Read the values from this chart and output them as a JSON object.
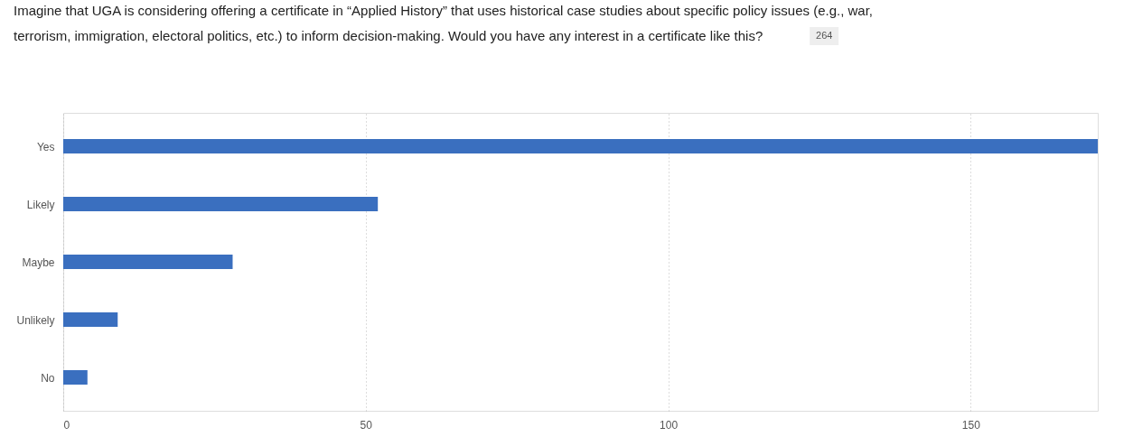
{
  "chart_data": {
    "type": "bar",
    "orientation": "horizontal",
    "title": "Imagine that UGA is considering offering a certificate in “Applied History” that uses historical case studies about specific policy issues (e.g., war, terrorism, immigration, electoral politics, etc.) to inform decision-making. Would you have any interest in a certificate like this?",
    "annotations": [
      "264"
    ],
    "categories": [
      "Yes",
      "Likely",
      "Maybe",
      "Unlikely",
      "No"
    ],
    "values": [
      171,
      52,
      28,
      9,
      4
    ],
    "color": "#3a6fbf",
    "xlim": [
      0,
      171
    ],
    "xticks": [
      0,
      50,
      100,
      150
    ],
    "grid": "x"
  }
}
